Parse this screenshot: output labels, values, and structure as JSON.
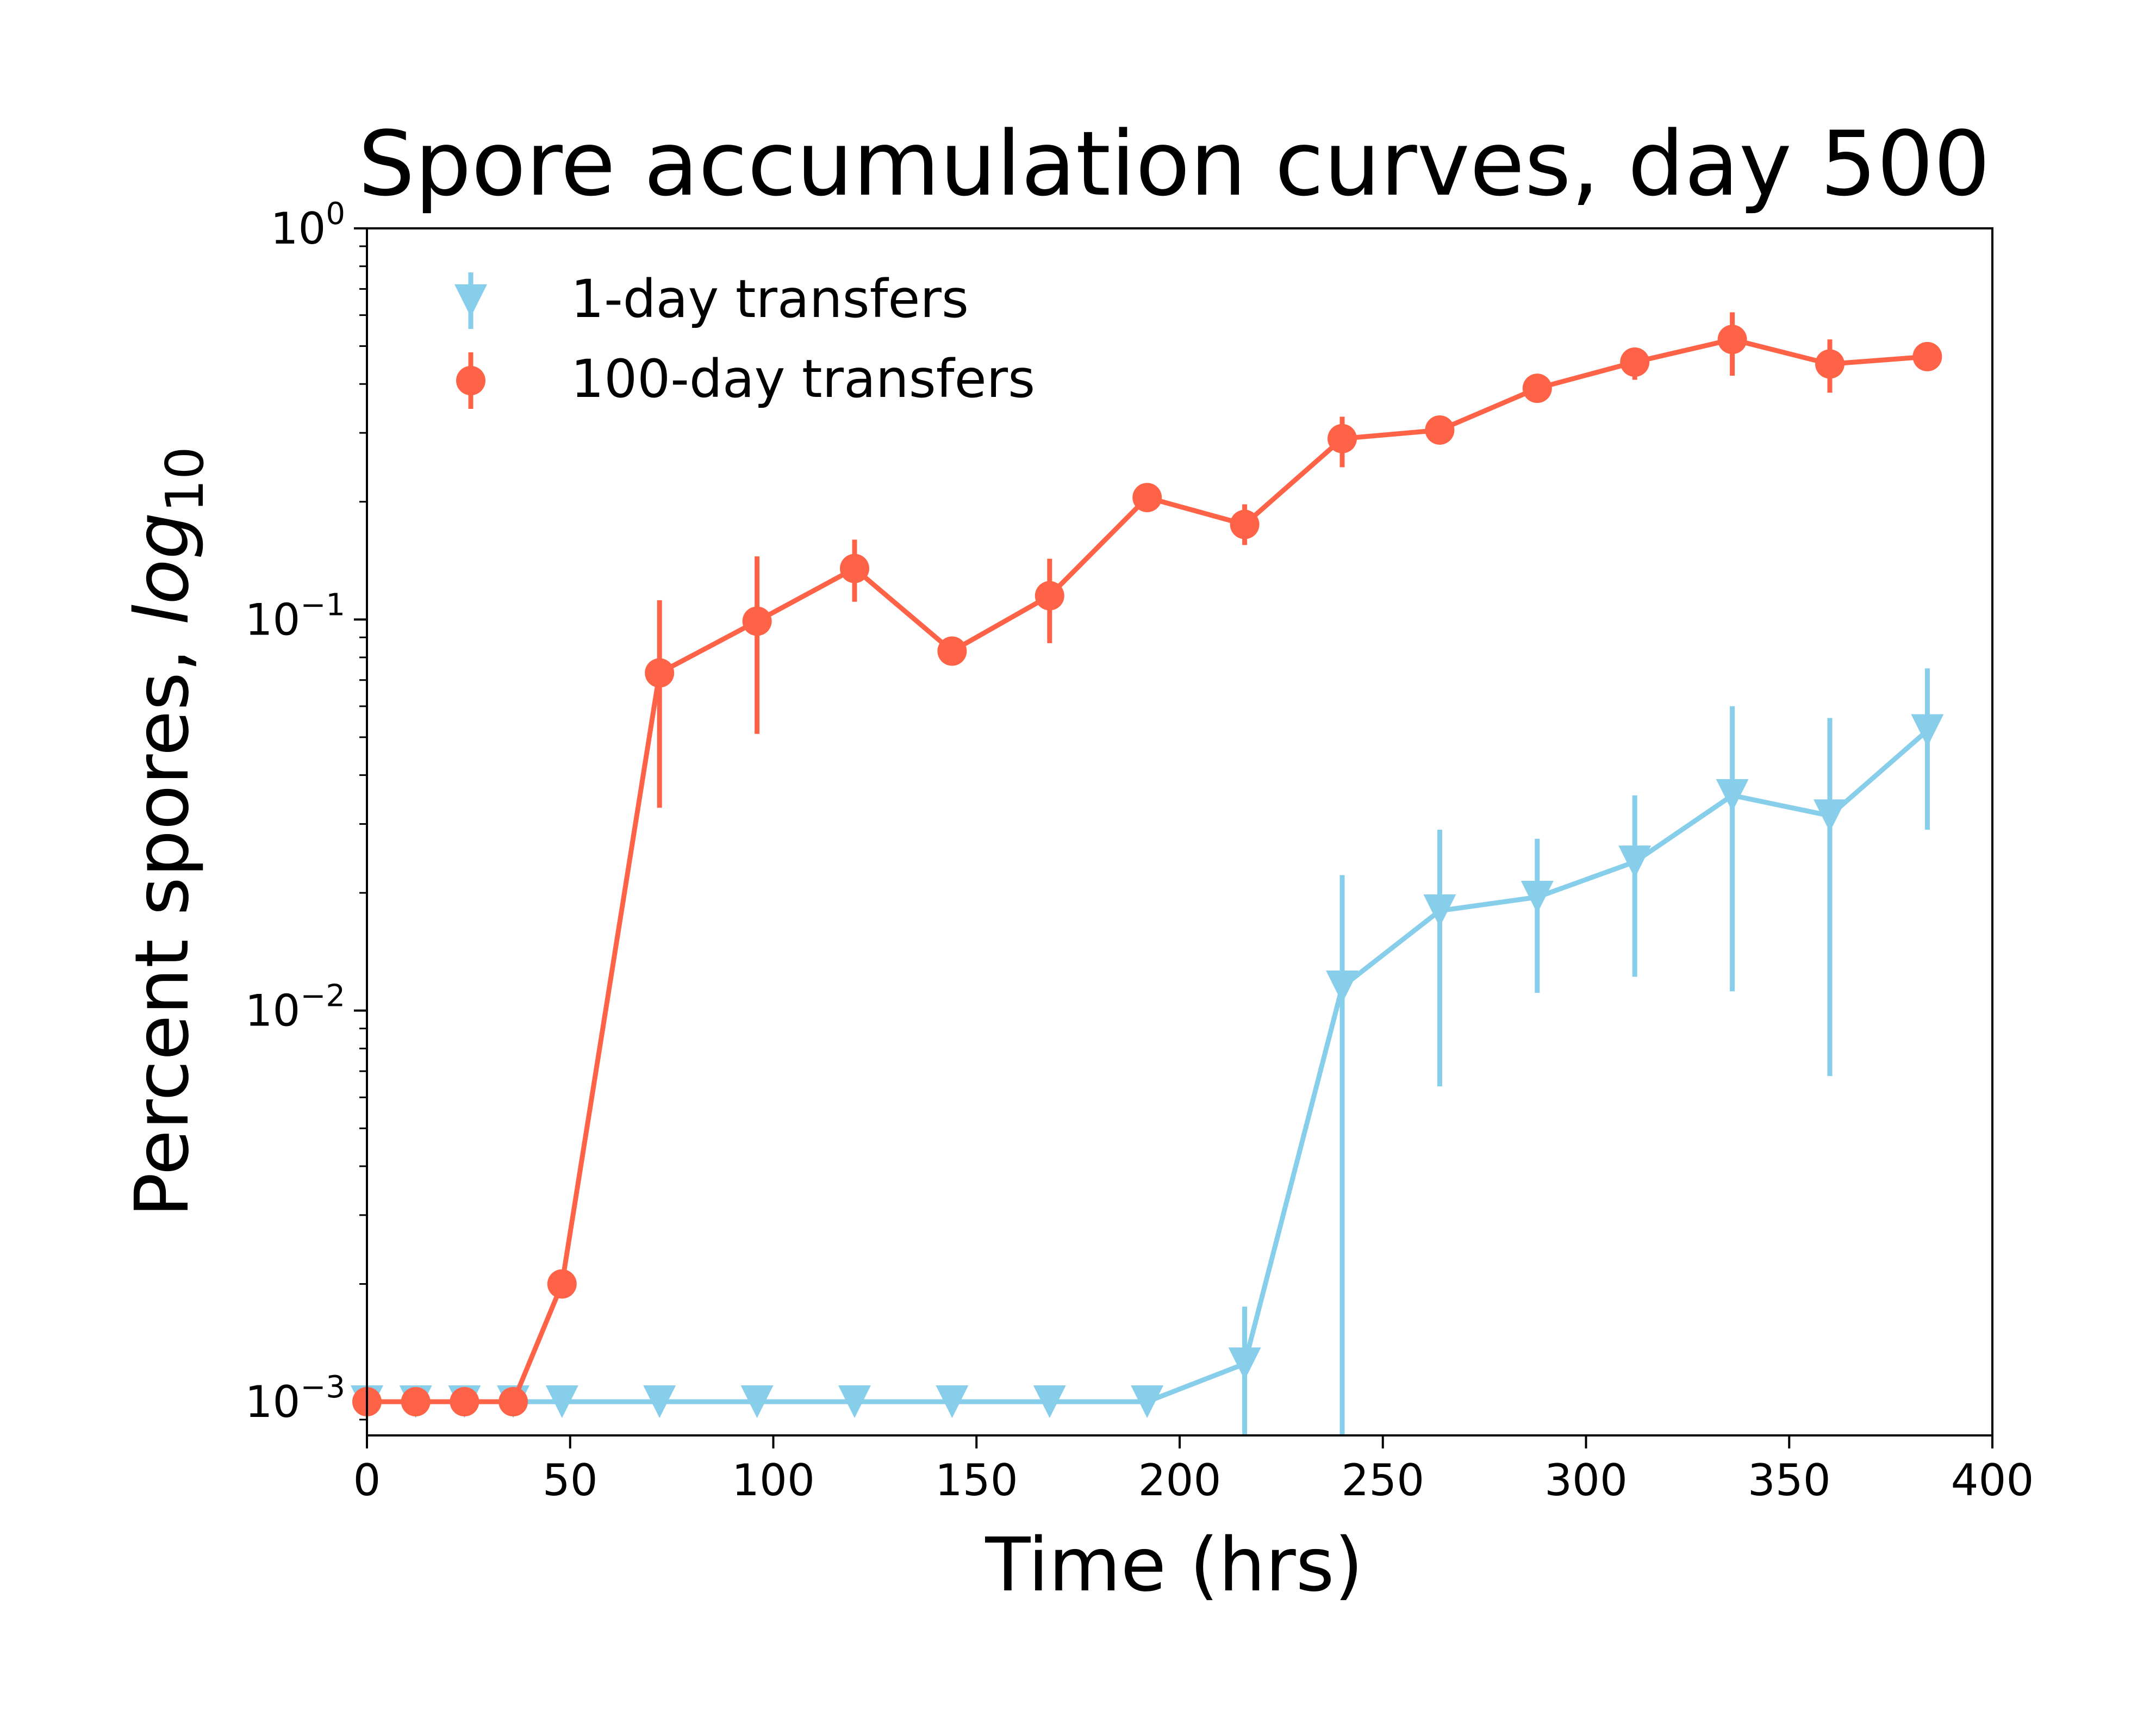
{
  "chart_data": {
    "type": "line",
    "title": "Spore accumulation curves, day 500",
    "xlabel": "Time (hrs)",
    "ylabel": "Percent spores, ",
    "ylabel_italic": "log",
    "ylabel_subscript": "10",
    "xlim": [
      0,
      400
    ],
    "ylim": [
      0.00082,
      1.0
    ],
    "yscale": "log",
    "grid": false,
    "legend_position": "top-left",
    "x_ticks": [
      0,
      50,
      100,
      150,
      200,
      250,
      300,
      350,
      400
    ],
    "x_tick_labels": [
      "0",
      "50",
      "100",
      "150",
      "200",
      "250",
      "300",
      "350",
      "400"
    ],
    "y_ticks": [
      {
        "value": 1,
        "base": "10",
        "exp": "0"
      },
      {
        "value": 0.1,
        "base": "10",
        "exp": "−1"
      },
      {
        "value": 0.01,
        "base": "10",
        "exp": "−2"
      },
      {
        "value": 0.001,
        "base": "10",
        "exp": "−3"
      }
    ],
    "series": [
      {
        "name": "1-day transfers",
        "color": "#87CEEB",
        "marker": "triangle-down",
        "x": [
          0,
          12,
          24,
          36,
          48,
          72,
          96,
          120,
          144,
          168,
          192,
          216,
          240,
          264,
          288,
          312,
          336,
          360,
          384
        ],
        "y": [
          0.001,
          0.001,
          0.001,
          0.001,
          0.001,
          0.001,
          0.001,
          0.001,
          0.001,
          0.001,
          0.001,
          0.00125,
          0.0115,
          0.018,
          0.0195,
          0.024,
          0.0355,
          0.0315,
          0.052
        ],
        "err_low": [
          null,
          null,
          null,
          null,
          null,
          null,
          null,
          null,
          null,
          null,
          null,
          0.00082,
          0.00082,
          0.0064,
          0.0111,
          0.0122,
          0.0112,
          0.0068,
          0.029
        ],
        "err_high": [
          null,
          null,
          null,
          null,
          null,
          null,
          null,
          null,
          null,
          null,
          null,
          0.00175,
          0.0222,
          0.029,
          0.0275,
          0.0355,
          0.06,
          0.056,
          0.075
        ]
      },
      {
        "name": "100-day transfers",
        "color": "#FF6347",
        "marker": "circle",
        "x": [
          0,
          12,
          24,
          36,
          48,
          72,
          96,
          120,
          144,
          168,
          192,
          216,
          240,
          264,
          288,
          312,
          336,
          360,
          384
        ],
        "y": [
          0.001,
          0.001,
          0.001,
          0.001,
          0.002,
          0.073,
          0.099,
          0.135,
          0.083,
          0.115,
          0.205,
          0.175,
          0.29,
          0.305,
          0.39,
          0.455,
          0.52,
          0.45,
          0.47
        ],
        "err_low": [
          null,
          null,
          null,
          null,
          null,
          0.033,
          0.051,
          0.111,
          null,
          0.087,
          null,
          0.155,
          0.245,
          null,
          null,
          0.41,
          0.42,
          0.38,
          null
        ],
        "err_high": [
          null,
          null,
          null,
          null,
          null,
          0.112,
          0.145,
          0.16,
          null,
          0.143,
          null,
          0.197,
          0.33,
          null,
          null,
          0.49,
          0.61,
          0.52,
          null
        ]
      }
    ]
  }
}
